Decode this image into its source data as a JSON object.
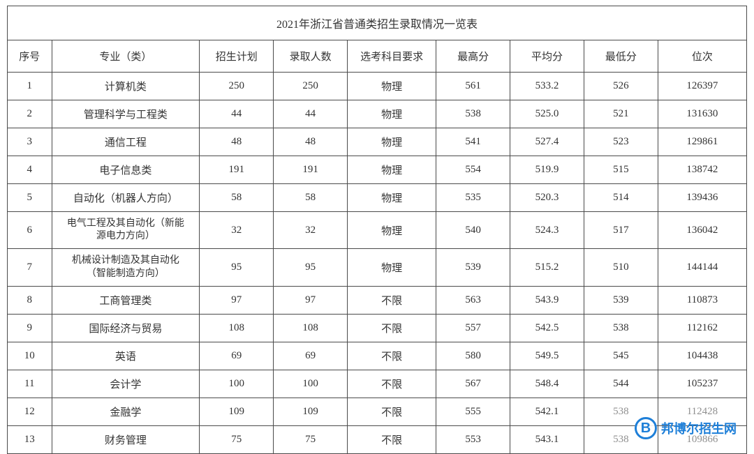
{
  "table": {
    "title": "2021年浙江省普通类招生录取情况一览表",
    "columns": [
      "序号",
      "专业（类）",
      "招生计划",
      "录取人数",
      "选考科目要求",
      "最高分",
      "平均分",
      "最低分",
      "位次"
    ],
    "rows": [
      {
        "seq": "1",
        "major": "计算机类",
        "plan": "250",
        "admit": "250",
        "req": "物理",
        "max": "561",
        "avg": "533.2",
        "min": "526",
        "rank": "126397"
      },
      {
        "seq": "2",
        "major": "管理科学与工程类",
        "plan": "44",
        "admit": "44",
        "req": "物理",
        "max": "538",
        "avg": "525.0",
        "min": "521",
        "rank": "131630"
      },
      {
        "seq": "3",
        "major": "通信工程",
        "plan": "48",
        "admit": "48",
        "req": "物理",
        "max": "541",
        "avg": "527.4",
        "min": "523",
        "rank": "129861"
      },
      {
        "seq": "4",
        "major": "电子信息类",
        "plan": "191",
        "admit": "191",
        "req": "物理",
        "max": "554",
        "avg": "519.9",
        "min": "515",
        "rank": "138742"
      },
      {
        "seq": "5",
        "major": "自动化（机器人方向）",
        "plan": "58",
        "admit": "58",
        "req": "物理",
        "max": "535",
        "avg": "520.3",
        "min": "514",
        "rank": "139436"
      },
      {
        "seq": "6",
        "major": "电气工程及其自动化（新能\n源电力方向）",
        "plan": "32",
        "admit": "32",
        "req": "物理",
        "max": "540",
        "avg": "524.3",
        "min": "517",
        "rank": "136042"
      },
      {
        "seq": "7",
        "major": "机械设计制造及其自动化\n（智能制造方向）",
        "plan": "95",
        "admit": "95",
        "req": "物理",
        "max": "539",
        "avg": "515.2",
        "min": "510",
        "rank": "144144"
      },
      {
        "seq": "8",
        "major": "工商管理类",
        "plan": "97",
        "admit": "97",
        "req": "不限",
        "max": "563",
        "avg": "543.9",
        "min": "539",
        "rank": "110873"
      },
      {
        "seq": "9",
        "major": "国际经济与贸易",
        "plan": "108",
        "admit": "108",
        "req": "不限",
        "max": "557",
        "avg": "542.5",
        "min": "538",
        "rank": "112162"
      },
      {
        "seq": "10",
        "major": "英语",
        "plan": "69",
        "admit": "69",
        "req": "不限",
        "max": "580",
        "avg": "549.5",
        "min": "545",
        "rank": "104438"
      },
      {
        "seq": "11",
        "major": "会计学",
        "plan": "100",
        "admit": "100",
        "req": "不限",
        "max": "567",
        "avg": "548.4",
        "min": "544",
        "rank": "105237"
      },
      {
        "seq": "12",
        "major": "金融学",
        "plan": "109",
        "admit": "109",
        "req": "不限",
        "max": "555",
        "avg": "542.1",
        "min": "538",
        "rank": "112428"
      },
      {
        "seq": "13",
        "major": "财务管理",
        "plan": "75",
        "admit": "75",
        "req": "不限",
        "max": "553",
        "avg": "543.1",
        "min": "538",
        "rank": "109866"
      }
    ],
    "border_color": "#4a4a4a",
    "text_color": "#333333",
    "background_color": "#ffffff",
    "title_fontsize": 16,
    "header_fontsize": 15,
    "cell_fontsize": 15
  },
  "watermark": {
    "logo_letter": "B",
    "text": "邦博尔招生网",
    "color": "#1e7fd8"
  }
}
